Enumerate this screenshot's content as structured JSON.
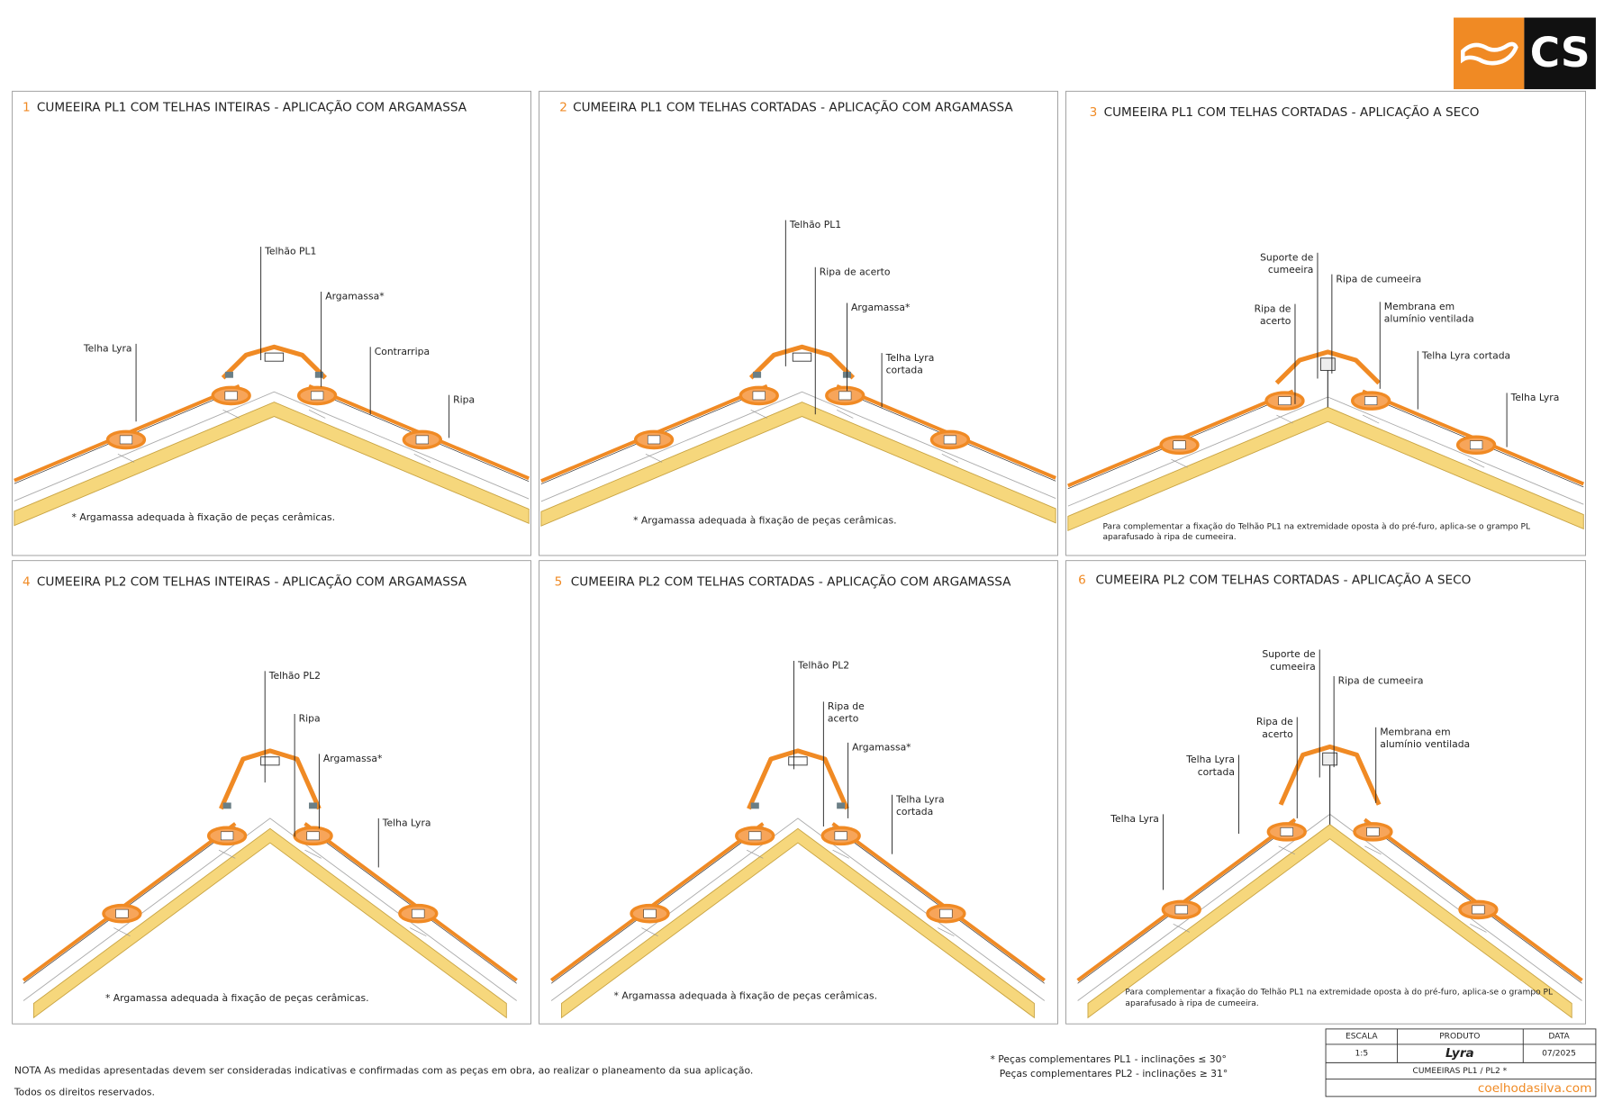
{
  "logo": "CS",
  "panels": [
    {
      "number": "1",
      "title": "CUMEEIRA PL1  COM TELHAS INTEIRAS - APLICAÇÃO COM ARGAMASSA",
      "labels": [
        [
          "Telhão PL1"
        ],
        [
          "Argamassa*"
        ],
        [
          "Telha Lyra"
        ],
        [
          "Contrarripa"
        ],
        [
          "Ripa"
        ]
      ],
      "note": [
        "* Argamassa adequada à fixação de peças cerâmicas."
      ]
    },
    {
      "number": "2",
      "title": "CUMEEIRA PL1 COM TELHAS CORTADAS - APLICAÇÃO COM ARGAMASSA",
      "labels": [
        [
          "Telhão PL1"
        ],
        [
          "Ripa de acerto"
        ],
        [
          "Argamassa*"
        ],
        [
          "Telha Lyra",
          "cortada"
        ]
      ],
      "note": [
        "* Argamassa adequada à fixação de peças cerâmicas."
      ]
    },
    {
      "number": "3",
      "title": "CUMEEIRA PL1 COM TELHAS CORTADAS - APLICAÇÃO A SECO",
      "labels": [
        [
          "Suporte de",
          "cumeeira"
        ],
        [
          "Ripa de cumeeira"
        ],
        [
          "Ripa de",
          "acerto"
        ],
        [
          "Membrana em",
          "alumínio ventilada"
        ],
        [
          "Telha Lyra cortada"
        ],
        [
          "Telha Lyra"
        ]
      ],
      "note": [
        "Para complementar a fixação do Telhão PL1 na extremidade oposta à do pré-furo, aplica-se o grampo PL",
        "aparafusado à ripa de cumeeira."
      ]
    },
    {
      "number": "4",
      "title": "CUMEEIRA PL2  COM TELHAS INTEIRAS - APLICAÇÃO COM ARGAMASSA",
      "labels": [
        [
          "Telhão PL2"
        ],
        [
          "Ripa"
        ],
        [
          "Argamassa*"
        ],
        [
          "Telha Lyra"
        ]
      ],
      "note": [
        "* Argamassa adequada à fixação de peças cerâmicas."
      ]
    },
    {
      "number": "5",
      "title": "CUMEEIRA PL2 COM TELHAS CORTADAS  - APLICAÇÃO COM ARGAMASSA",
      "labels": [
        [
          "Telhão PL2"
        ],
        [
          "Ripa de",
          "acerto"
        ],
        [
          "Argamassa*"
        ],
        [
          "Telha Lyra",
          "cortada"
        ]
      ],
      "note": [
        "* Argamassa adequada à fixação de peças cerâmicas."
      ]
    },
    {
      "number": "6",
      "title": "CUMEEIRA PL2 COM TELHAS CORTADAS  - APLICAÇÃO A SECO",
      "labels": [
        [
          "Suporte de",
          "cumeeira"
        ],
        [
          "Ripa de cumeeira"
        ],
        [
          "Ripa de",
          "acerto"
        ],
        [
          "Membrana em",
          "alumínio ventilada"
        ],
        [
          "Telha Lyra",
          "cortada"
        ],
        [
          "Telha Lyra"
        ]
      ],
      "note": [
        "Para complementar a fixação do Telhão PL1 na extremidade oposta à do pré-furo, aplica-se o grampo PL",
        "aparafusado à ripa de cumeeira."
      ]
    }
  ],
  "footer": {
    "note": "NOTA As medidas apresentadas devem ser consideradas indicativas e confirmadas com as peças em obra, ao realizar o planeamento da sua aplicação.",
    "rights": "Todos os direitos reservados.",
    "pieces": [
      "* Peças complementares PL1 - inclinações ≤ 30°",
      "Peças complementares PL2 - inclinações ≥ 31°"
    ]
  },
  "title_block": {
    "headers": [
      "ESCALA",
      "PRODUTO",
      "DATA"
    ],
    "values": [
      "1:5",
      "Lyra",
      "07/2025"
    ],
    "sheet": "CUMEEIRAS PL1 / PL2 *",
    "website": "coelhodasilva.com"
  }
}
